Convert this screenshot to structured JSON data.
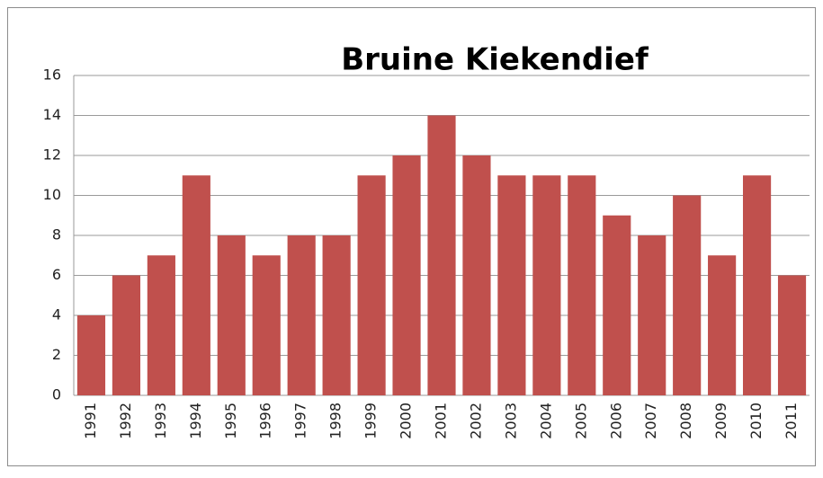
{
  "chart_data": {
    "type": "bar",
    "title": "Bruine Kiekendief",
    "categories": [
      "1991",
      "1992",
      "1993",
      "1994",
      "1995",
      "1996",
      "1997",
      "1998",
      "1999",
      "2000",
      "2001",
      "2002",
      "2003",
      "2004",
      "2005",
      "2006",
      "2007",
      "2008",
      "2009",
      "2010",
      "2011"
    ],
    "values": [
      4,
      6,
      7,
      11,
      8,
      7,
      8,
      8,
      11,
      12,
      14,
      12,
      11,
      11,
      11,
      9,
      8,
      10,
      7,
      11,
      6
    ],
    "color": "#c0504d",
    "ylim": [
      0,
      16
    ],
    "yticks": [
      0,
      2,
      4,
      6,
      8,
      10,
      12,
      14,
      16
    ],
    "grid": true
  }
}
